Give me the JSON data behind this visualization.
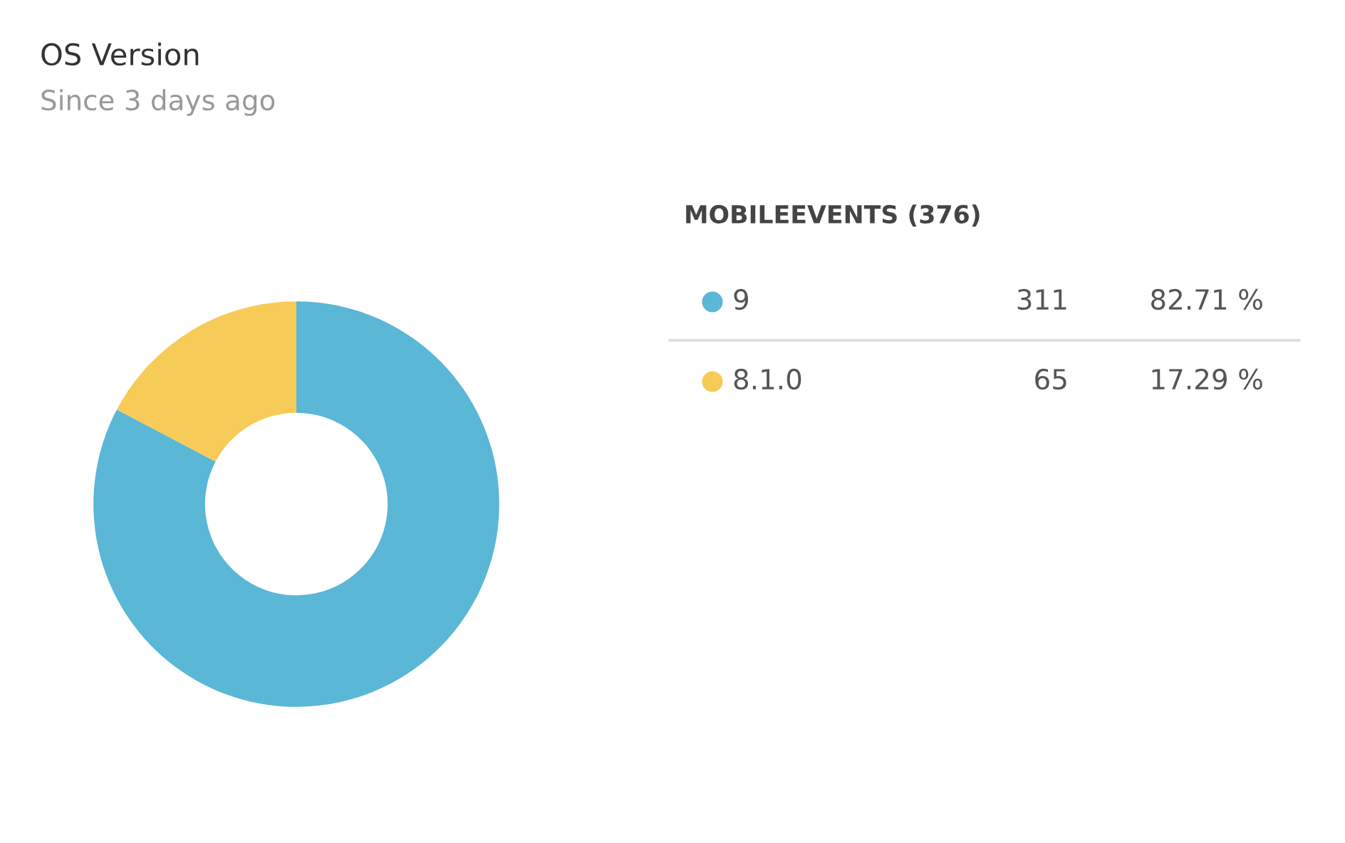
{
  "chart_data": {
    "type": "donut",
    "title": "OS Version",
    "subtitle": "Since 3 days ago",
    "legend_title": "MOBILEEVENTS (376)",
    "categories": [
      "9",
      "8.1.0"
    ],
    "values": [
      82.71,
      17.29
    ],
    "colors": [
      "#5ab7d5",
      "#f7cb58"
    ],
    "value_labels": [
      "82.71 %",
      "17.29 %"
    ],
    "annotations": [
      "311",
      "65"
    ],
    "legend": "right"
  }
}
